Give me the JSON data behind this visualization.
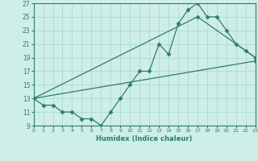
{
  "line1_x": [
    0,
    1,
    2,
    3,
    4,
    5,
    6,
    7,
    8,
    9,
    10,
    11,
    12,
    13,
    14,
    15,
    16,
    17,
    18,
    19,
    20,
    21,
    22,
    23
  ],
  "line1_y": [
    13,
    12,
    12,
    11,
    11,
    10,
    10,
    9,
    11,
    13,
    15,
    17,
    17,
    21,
    19.5,
    24,
    26,
    27,
    25,
    25,
    23,
    21,
    20,
    19
  ],
  "line2_x": [
    0,
    23
  ],
  "line2_y": [
    13,
    18.5
  ],
  "line3_x": [
    0,
    17,
    23
  ],
  "line3_y": [
    13,
    25,
    19
  ],
  "color": "#2e7d6e",
  "bg_color": "#ceeee8",
  "grid_color": "#a8d5ce",
  "xlabel": "Humidex (Indice chaleur)",
  "xlim": [
    0,
    23
  ],
  "ylim": [
    9,
    27
  ],
  "yticks": [
    9,
    11,
    13,
    15,
    17,
    19,
    21,
    23,
    25,
    27
  ],
  "xticks": [
    0,
    1,
    2,
    3,
    4,
    5,
    6,
    7,
    8,
    9,
    10,
    11,
    12,
    13,
    14,
    15,
    16,
    17,
    18,
    19,
    20,
    21,
    22,
    23
  ],
  "marker": "D",
  "markersize": 2.5,
  "linewidth": 0.9
}
